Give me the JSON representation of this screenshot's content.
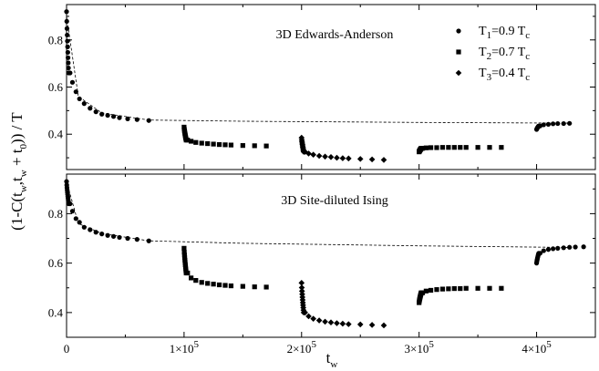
{
  "chart_data": [
    {
      "type": "scatter",
      "title": "3D Edwards-Anderson",
      "xlim": [
        0,
        450000
      ],
      "ylim": [
        0.25,
        0.95
      ],
      "yticks": [
        0.4,
        0.6,
        0.8
      ],
      "ytick_labels": [
        "0.4",
        "0.6",
        "0.8"
      ],
      "legend_position": "top-right",
      "legend": [
        {
          "marker": "circle",
          "main": "T",
          "sub": "1",
          "rest": "=0.9 T",
          "sub2": "c"
        },
        {
          "marker": "square",
          "main": "T",
          "sub": "2",
          "rest": "=0.7 T",
          "sub2": "c"
        },
        {
          "marker": "diamond",
          "main": "T",
          "sub": "3",
          "rest": "=0.4 T",
          "sub2": "c"
        }
      ],
      "reference_curve": {
        "style": "dashed",
        "points": [
          [
            0,
            0.9
          ],
          [
            10000,
            0.56
          ],
          [
            30000,
            0.49
          ],
          [
            70000,
            0.46
          ],
          [
            150000,
            0.455
          ],
          [
            300000,
            0.45
          ],
          [
            430000,
            0.447
          ]
        ]
      },
      "series": [
        {
          "marker": "circle",
          "segments": [
            {
              "x0": 0,
              "spike_top": 0.92,
              "spike_dx": 1500,
              "points": [
                [
                  3000,
                  0.66
                ],
                [
                  5000,
                  0.62
                ],
                [
                  8000,
                  0.58
                ],
                [
                  11000,
                  0.55
                ],
                [
                  15000,
                  0.53
                ],
                [
                  20000,
                  0.51
                ],
                [
                  25000,
                  0.495
                ],
                [
                  30000,
                  0.485
                ],
                [
                  35000,
                  0.48
                ],
                [
                  40000,
                  0.475
                ],
                [
                  45000,
                  0.47
                ],
                [
                  52000,
                  0.465
                ],
                [
                  60000,
                  0.462
                ],
                [
                  70000,
                  0.458
                ]
              ]
            },
            {
              "x0": 400000,
              "spike_top": 0.42,
              "spike_dx": 1500,
              "points": [
                [
                  403000,
                  0.435
                ],
                [
                  406000,
                  0.44
                ],
                [
                  410000,
                  0.442
                ],
                [
                  414000,
                  0.444
                ],
                [
                  418000,
                  0.445
                ],
                [
                  423000,
                  0.445
                ],
                [
                  428000,
                  0.446
                ]
              ]
            }
          ]
        },
        {
          "marker": "square",
          "segments": [
            {
              "x0": 100000,
              "spike_top": 0.43,
              "spike_dx": 1500,
              "points": [
                [
                  103000,
                  0.375
                ],
                [
                  106000,
                  0.37
                ],
                [
                  110000,
                  0.365
                ],
                [
                  115000,
                  0.362
                ],
                [
                  120000,
                  0.36
                ],
                [
                  125000,
                  0.358
                ],
                [
                  130000,
                  0.356
                ],
                [
                  135000,
                  0.355
                ],
                [
                  140000,
                  0.354
                ],
                [
                  150000,
                  0.352
                ],
                [
                  160000,
                  0.351
                ],
                [
                  170000,
                  0.35
                ]
              ]
            },
            {
              "x0": 300000,
              "spike_top": 0.325,
              "spike_dx": 1500,
              "points": [
                [
                  303000,
                  0.34
                ],
                [
                  306000,
                  0.342
                ],
                [
                  310000,
                  0.343
                ],
                [
                  315000,
                  0.343
                ],
                [
                  320000,
                  0.344
                ],
                [
                  325000,
                  0.344
                ],
                [
                  330000,
                  0.344
                ],
                [
                  335000,
                  0.344
                ],
                [
                  340000,
                  0.344
                ],
                [
                  350000,
                  0.344
                ],
                [
                  360000,
                  0.344
                ],
                [
                  370000,
                  0.344
                ]
              ]
            }
          ]
        },
        {
          "marker": "diamond",
          "segments": [
            {
              "x0": 200000,
              "spike_top": 0.385,
              "spike_dx": 1500,
              "points": [
                [
                  203000,
                  0.325
                ],
                [
                  206000,
                  0.318
                ],
                [
                  210000,
                  0.313
                ],
                [
                  215000,
                  0.308
                ],
                [
                  220000,
                  0.305
                ],
                [
                  225000,
                  0.303
                ],
                [
                  230000,
                  0.3
                ],
                [
                  235000,
                  0.298
                ],
                [
                  240000,
                  0.297
                ],
                [
                  250000,
                  0.295
                ],
                [
                  260000,
                  0.293
                ],
                [
                  270000,
                  0.291
                ]
              ]
            }
          ]
        }
      ]
    },
    {
      "type": "scatter",
      "title": "3D Site-diluted Ising",
      "xlabel": "t",
      "xlabel_sub": "w",
      "xlim": [
        0,
        450000
      ],
      "ylim": [
        0.3,
        0.96
      ],
      "yticks": [
        0.4,
        0.6,
        0.8
      ],
      "ytick_labels": [
        "0.4",
        "0.6",
        "0.8"
      ],
      "xticks": [
        0,
        100000,
        200000,
        300000,
        400000
      ],
      "xtick_labels": [
        {
          "mant": "0",
          "exp": ""
        },
        {
          "mant": "1×10",
          "exp": "5"
        },
        {
          "mant": "2×10",
          "exp": "5"
        },
        {
          "mant": "3×10",
          "exp": "5"
        },
        {
          "mant": "4×10",
          "exp": "5"
        }
      ],
      "reference_curve": {
        "style": "dashed",
        "points": [
          [
            0,
            0.93
          ],
          [
            10000,
            0.76
          ],
          [
            30000,
            0.72
          ],
          [
            70000,
            0.69
          ],
          [
            150000,
            0.68
          ],
          [
            300000,
            0.67
          ],
          [
            430000,
            0.663
          ]
        ]
      },
      "series": [
        {
          "marker": "circle",
          "segments": [
            {
              "x0": 0,
              "spike_top": 0.93,
              "spike_dx": 1500,
              "points": [
                [
                  3000,
                  0.84
                ],
                [
                  5000,
                  0.81
                ],
                [
                  8000,
                  0.78
                ],
                [
                  11000,
                  0.765
                ],
                [
                  15000,
                  0.745
                ],
                [
                  20000,
                  0.735
                ],
                [
                  25000,
                  0.725
                ],
                [
                  30000,
                  0.718
                ],
                [
                  35000,
                  0.712
                ],
                [
                  40000,
                  0.708
                ],
                [
                  45000,
                  0.704
                ],
                [
                  52000,
                  0.7
                ],
                [
                  60000,
                  0.696
                ],
                [
                  70000,
                  0.69
                ]
              ]
            },
            {
              "x0": 400000,
              "spike_top": 0.6,
              "spike_dx": 1500,
              "points": [
                [
                  403000,
                  0.64
                ],
                [
                  406000,
                  0.65
                ],
                [
                  410000,
                  0.655
                ],
                [
                  414000,
                  0.658
                ],
                [
                  418000,
                  0.66
                ],
                [
                  423000,
                  0.662
                ],
                [
                  428000,
                  0.664
                ],
                [
                  433000,
                  0.665
                ],
                [
                  440000,
                  0.666
                ]
              ]
            }
          ]
        },
        {
          "marker": "square",
          "segments": [
            {
              "x0": 100000,
              "spike_top": 0.66,
              "spike_dx": 1500,
              "points": [
                [
                  103000,
                  0.56
                ],
                [
                  106000,
                  0.54
                ],
                [
                  110000,
                  0.53
                ],
                [
                  115000,
                  0.522
                ],
                [
                  120000,
                  0.518
                ],
                [
                  125000,
                  0.515
                ],
                [
                  130000,
                  0.512
                ],
                [
                  135000,
                  0.51
                ],
                [
                  140000,
                  0.508
                ],
                [
                  150000,
                  0.506
                ],
                [
                  160000,
                  0.504
                ],
                [
                  170000,
                  0.503
                ]
              ]
            },
            {
              "x0": 300000,
              "spike_top": 0.44,
              "spike_dx": 1500,
              "points": [
                [
                  303000,
                  0.48
                ],
                [
                  306000,
                  0.487
                ],
                [
                  310000,
                  0.49
                ],
                [
                  315000,
                  0.493
                ],
                [
                  320000,
                  0.495
                ],
                [
                  325000,
                  0.496
                ],
                [
                  330000,
                  0.497
                ],
                [
                  335000,
                  0.497
                ],
                [
                  340000,
                  0.498
                ],
                [
                  350000,
                  0.498
                ],
                [
                  360000,
                  0.498
                ],
                [
                  370000,
                  0.498
                ]
              ]
            }
          ]
        },
        {
          "marker": "diamond",
          "segments": [
            {
              "x0": 200000,
              "spike_top": 0.52,
              "spike_dx": 1500,
              "points": [
                [
                  203000,
                  0.4
                ],
                [
                  206000,
                  0.385
                ],
                [
                  210000,
                  0.375
                ],
                [
                  215000,
                  0.368
                ],
                [
                  220000,
                  0.363
                ],
                [
                  225000,
                  0.36
                ],
                [
                  230000,
                  0.357
                ],
                [
                  235000,
                  0.355
                ],
                [
                  240000,
                  0.353
                ],
                [
                  250000,
                  0.352
                ],
                [
                  260000,
                  0.35
                ],
                [
                  270000,
                  0.348
                ]
              ]
            }
          ]
        }
      ]
    }
  ],
  "ylabel": "(1-C(t,t+t))/T",
  "ylabel_parts": [
    {
      "t": "(1-C(t",
      "sub": false
    },
    {
      "t": "w",
      "sub": true
    },
    {
      "t": ",t",
      "sub": false
    },
    {
      "t": "w",
      "sub": true
    },
    {
      "t": " + t",
      "sub": false
    },
    {
      "t": "0",
      "sub": true
    },
    {
      "t": ")) / T",
      "sub": false
    }
  ]
}
